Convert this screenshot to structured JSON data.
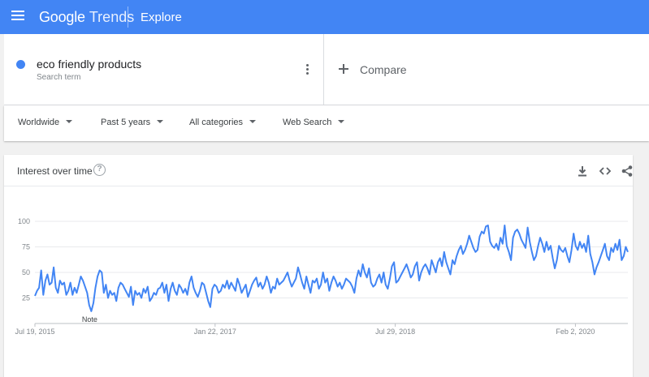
{
  "header": {
    "brand_google": "Google",
    "brand_trends": "Trends",
    "section": "Explore",
    "color": "#4285f4"
  },
  "search_term": {
    "name": "eco friendly products",
    "subtitle": "Search term",
    "color": "#4285f4",
    "compare_label": "Compare"
  },
  "filters": {
    "region": "Worldwide",
    "time_range": "Past 5 years",
    "category": "All categories",
    "search_type": "Web Search"
  },
  "card": {
    "title": "Interest over time",
    "help_icon": "?",
    "icons": [
      "download-icon",
      "embed-icon",
      "share-icon"
    ]
  },
  "chart_data": {
    "type": "line",
    "ylim": [
      0,
      100
    ],
    "yticks": [
      25,
      50,
      75,
      100
    ],
    "ytick_labels": [
      "25",
      "50",
      "75",
      "100"
    ],
    "xlim": [
      "2015-07-19",
      "2020-07-12"
    ],
    "xticks": [
      {
        "date": "2015-07-19",
        "label": "Jul 19, 2015"
      },
      {
        "date": "2017-01-22",
        "label": "Jan 22, 2017"
      },
      {
        "date": "2018-07-29",
        "label": "Jul 29, 2018"
      },
      {
        "date": "2020-02-02",
        "label": "Feb 2, 2020"
      }
    ],
    "annotation": {
      "label": "Note",
      "date": "2016-01-03"
    },
    "grid": true,
    "series": [
      {
        "color": "#4285f4",
        "values": [
          27,
          32,
          35,
          52,
          28,
          42,
          48,
          38,
          40,
          55,
          35,
          30,
          42,
          38,
          40,
          28,
          32,
          40,
          28,
          35,
          30,
          38,
          46,
          42,
          36,
          30,
          18,
          12,
          20,
          35,
          46,
          52,
          50,
          30,
          38,
          25,
          32,
          28,
          30,
          22,
          35,
          40,
          38,
          34,
          30,
          26,
          36,
          18,
          32,
          28,
          30,
          25,
          34,
          30,
          36,
          22,
          25,
          30,
          28,
          34,
          35,
          40,
          30,
          38,
          22,
          34,
          40,
          32,
          28,
          38,
          35,
          30,
          34,
          28,
          40,
          46,
          35,
          30,
          26,
          32,
          40,
          38,
          30,
          22,
          16,
          34,
          38,
          36,
          30,
          32,
          38,
          35,
          42,
          34,
          40,
          36,
          32,
          44,
          38,
          30,
          34,
          38,
          26,
          32,
          38,
          42,
          45,
          36,
          40,
          34,
          38,
          46,
          40,
          30,
          36,
          34,
          44,
          38,
          40,
          42,
          46,
          50,
          42,
          36,
          40,
          44,
          55,
          48,
          40,
          34,
          46,
          38,
          30,
          42,
          40,
          44,
          34,
          38,
          50,
          40,
          44,
          32,
          40,
          46,
          42,
          36,
          40,
          34,
          38,
          44,
          42,
          40,
          36,
          30,
          44,
          52,
          46,
          58,
          50,
          45,
          54,
          40,
          36,
          38,
          44,
          48,
          40,
          50,
          38,
          34,
          44,
          56,
          60,
          40,
          42,
          46,
          50,
          54,
          58,
          52,
          45,
          48,
          56,
          60,
          42,
          50,
          55,
          58,
          54,
          48,
          62,
          56,
          50,
          60,
          64,
          56,
          70,
          60,
          54,
          48,
          62,
          58,
          66,
          72,
          76,
          68,
          72,
          78,
          86,
          80,
          74,
          70,
          72,
          85,
          90,
          88,
          95,
          96,
          80,
          76,
          74,
          78,
          72,
          84,
          78,
          96,
          76,
          70,
          62,
          84,
          90,
          92,
          88,
          82,
          78,
          74,
          94,
          80,
          70,
          62,
          66,
          76,
          84,
          78,
          70,
          80,
          72,
          76,
          64,
          54,
          62,
          76,
          72,
          70,
          74,
          66,
          60,
          72,
          88,
          76,
          72,
          80,
          74,
          78,
          70,
          86,
          68,
          60,
          48,
          55,
          60,
          66,
          72,
          78,
          66,
          62,
          74,
          70,
          78,
          72,
          82,
          62,
          66,
          75,
          70
        ]
      }
    ]
  }
}
